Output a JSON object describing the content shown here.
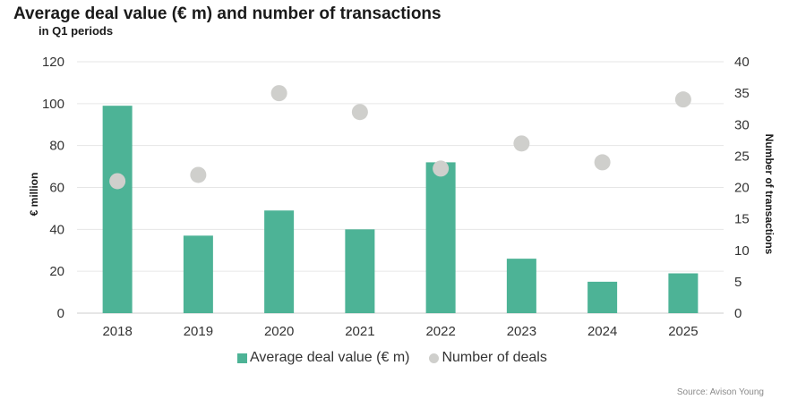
{
  "title": "Average deal value (€ m) and number of transactions",
  "subtitle": "in Q1 periods",
  "source": "Source: Avison Young",
  "colors": {
    "bar": "#4db396",
    "dot": "#cfcfcc",
    "grid": "#e6e6e6",
    "axis": "#cccccc"
  },
  "chart_data": {
    "type": "bar",
    "categories": [
      "2018",
      "2019",
      "2020",
      "2021",
      "2022",
      "2023",
      "2024",
      "2025"
    ],
    "series": [
      {
        "name": "Average deal value (€ m)",
        "type": "bar",
        "axis": "left",
        "values": [
          99,
          37,
          49,
          40,
          72,
          26,
          15,
          19
        ]
      },
      {
        "name": "Number of deals",
        "type": "scatter",
        "axis": "right",
        "values": [
          21,
          22,
          35,
          32,
          23,
          27,
          24,
          34
        ]
      }
    ],
    "ylabel": "€ million",
    "y2label": "Number of transactions",
    "ylim": [
      0,
      120
    ],
    "y2lim": [
      0,
      40
    ],
    "yticks": [
      0,
      20,
      40,
      60,
      80,
      100,
      120
    ],
    "y2ticks": [
      0,
      5,
      10,
      15,
      20,
      25,
      30,
      35,
      40
    ],
    "grid": true,
    "legend": "bottom-center"
  }
}
